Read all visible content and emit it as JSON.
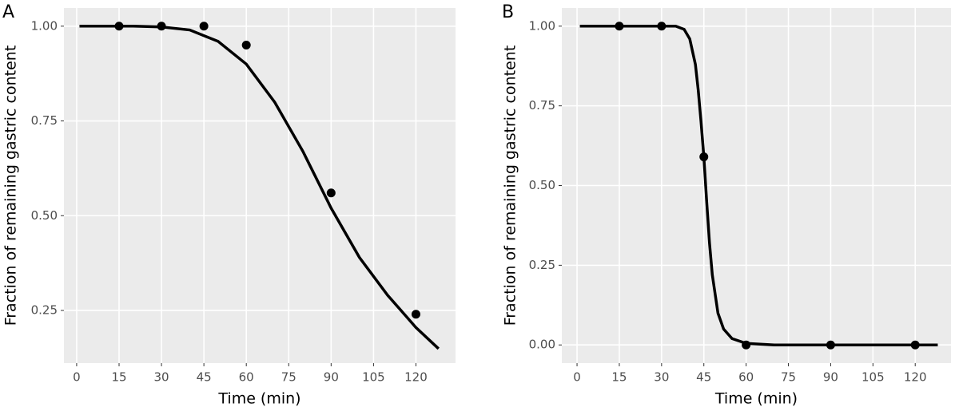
{
  "chart_data": [
    {
      "type": "scatter",
      "panel_label": "A",
      "x_label": "Time (min)",
      "y_label": "Fraction of remaining gastric content",
      "color": "#000000",
      "grid": true,
      "xlim": [
        -4.5,
        134
      ],
      "ylim": [
        0.111,
        1.048
      ],
      "xticks": [
        0,
        15,
        30,
        45,
        60,
        75,
        90,
        105,
        120
      ],
      "yticks": [
        {
          "value": 0.25,
          "label": "0.25"
        },
        {
          "value": 0.5,
          "label": "0.50"
        },
        {
          "value": 0.75,
          "label": "0.75"
        },
        {
          "value": 1,
          "label": "1.00"
        }
      ],
      "points": {
        "x": [
          15,
          30,
          45,
          60,
          90,
          120
        ],
        "y": [
          1,
          1,
          1,
          0.95,
          0.56,
          0.24
        ]
      },
      "curve": {
        "x": [
          1,
          10,
          20,
          30,
          40,
          50,
          60,
          70,
          80,
          90,
          100,
          110,
          120,
          128
        ],
        "y": [
          1,
          1,
          1,
          0.998,
          0.99,
          0.96,
          0.9,
          0.8,
          0.67,
          0.52,
          0.39,
          0.29,
          0.205,
          0.149
        ]
      }
    },
    {
      "type": "scatter",
      "panel_label": "B",
      "x_label": "Time (min)",
      "y_label": "Fraction of remaining gastric content",
      "color": "#000000",
      "grid": true,
      "xlim": [
        -5.4,
        132.7
      ],
      "ylim": [
        -0.057,
        1.057
      ],
      "xticks": [
        0,
        15,
        30,
        45,
        60,
        75,
        90,
        105,
        120
      ],
      "yticks": [
        {
          "value": 0,
          "label": "0.00"
        },
        {
          "value": 0.25,
          "label": "0.25"
        },
        {
          "value": 0.5,
          "label": "0.50"
        },
        {
          "value": 0.75,
          "label": "0.75"
        },
        {
          "value": 1,
          "label": "1.00"
        }
      ],
      "points": {
        "x": [
          15,
          30,
          45,
          60,
          90,
          120
        ],
        "y": [
          1,
          1,
          0.59,
          0,
          0,
          0
        ]
      },
      "curve": {
        "x": [
          1,
          35,
          38,
          40,
          42,
          43,
          44,
          45,
          46,
          47,
          48,
          50,
          52,
          55,
          60,
          70,
          128
        ],
        "y": [
          1,
          1,
          0.99,
          0.96,
          0.88,
          0.8,
          0.7,
          0.59,
          0.45,
          0.32,
          0.22,
          0.1,
          0.05,
          0.02,
          0.005,
          0,
          0
        ]
      }
    }
  ]
}
